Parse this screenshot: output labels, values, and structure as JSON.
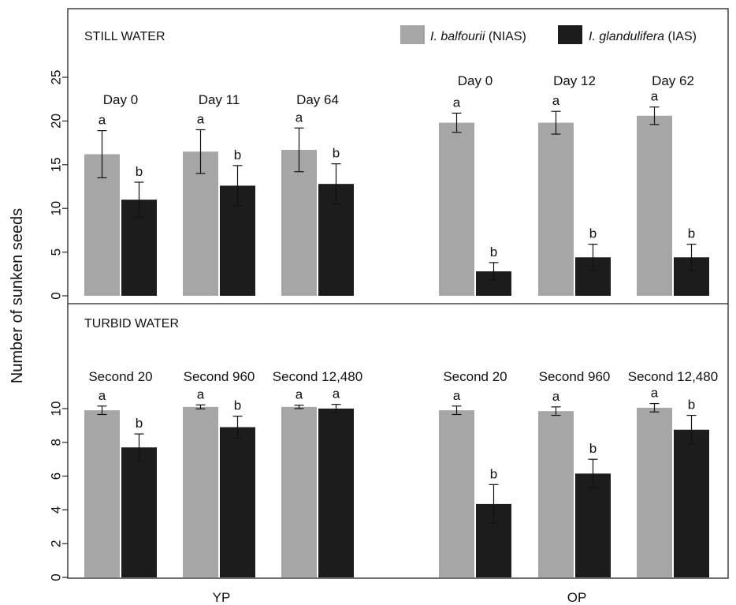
{
  "colors": {
    "nias": "#a6a6a6",
    "ias": "#1c1c1c",
    "axis": "#222222"
  },
  "chart_data": {
    "type": "bar",
    "ylabel": "Number of sunken seeds",
    "x_groups": [
      "YP",
      "OP"
    ],
    "legend": {
      "position": "top-right",
      "entries": [
        {
          "species": "I. balfourii",
          "suffix": " (NIAS)",
          "color_key": "nias"
        },
        {
          "species": "I. glandulifera",
          "suffix": " (IAS)",
          "color_key": "ias"
        }
      ]
    },
    "panels": [
      {
        "panel_label": "STILL WATER",
        "ylim": [
          0,
          25
        ],
        "yticks": [
          0,
          5,
          10,
          15,
          20,
          25
        ],
        "categories": [
          {
            "group": "YP",
            "label": "Day 0",
            "nias": 16.2,
            "nias_err": 2.7,
            "nias_sig": "a",
            "ias": 11.0,
            "ias_err": 2.0,
            "ias_sig": "b"
          },
          {
            "group": "YP",
            "label": "Day 11",
            "nias": 16.5,
            "nias_err": 2.5,
            "nias_sig": "a",
            "ias": 12.6,
            "ias_err": 2.3,
            "ias_sig": "b"
          },
          {
            "group": "YP",
            "label": "Day 64",
            "nias": 16.7,
            "nias_err": 2.5,
            "nias_sig": "a",
            "ias": 12.8,
            "ias_err": 2.3,
            "ias_sig": "b"
          },
          {
            "group": "OP",
            "label": "Day 0",
            "nias": 19.8,
            "nias_err": 1.1,
            "nias_sig": "a",
            "ias": 2.8,
            "ias_err": 1.0,
            "ias_sig": "b"
          },
          {
            "group": "OP",
            "label": "Day 12",
            "nias": 19.8,
            "nias_err": 1.3,
            "nias_sig": "a",
            "ias": 4.4,
            "ias_err": 1.5,
            "ias_sig": "b"
          },
          {
            "group": "OP",
            "label": "Day 62",
            "nias": 20.6,
            "nias_err": 1.0,
            "nias_sig": "a",
            "ias": 4.4,
            "ias_err": 1.5,
            "ias_sig": "b"
          }
        ]
      },
      {
        "panel_label": "TURBID WATER",
        "ylim": [
          0,
          10
        ],
        "yticks": [
          0,
          2,
          4,
          6,
          8,
          10
        ],
        "categories": [
          {
            "group": "YP",
            "label": "Second 20",
            "nias": 9.9,
            "nias_err": 0.25,
            "nias_sig": "a",
            "ias": 7.7,
            "ias_err": 0.8,
            "ias_sig": "b"
          },
          {
            "group": "YP",
            "label": "Second 960",
            "nias": 10.1,
            "nias_err": 0.12,
            "nias_sig": "a",
            "ias": 8.9,
            "ias_err": 0.65,
            "ias_sig": "b"
          },
          {
            "group": "YP",
            "label": "Second 12,480",
            "nias": 10.1,
            "nias_err": 0.1,
            "nias_sig": "a",
            "ias": 10.0,
            "ias_err": 0.25,
            "ias_sig": "a"
          },
          {
            "group": "OP",
            "label": "Second 20",
            "nias": 9.9,
            "nias_err": 0.25,
            "nias_sig": "a",
            "ias": 4.35,
            "ias_err": 1.15,
            "ias_sig": "b"
          },
          {
            "group": "OP",
            "label": "Second 960",
            "nias": 9.85,
            "nias_err": 0.25,
            "nias_sig": "a",
            "ias": 6.15,
            "ias_err": 0.85,
            "ias_sig": "b"
          },
          {
            "group": "OP",
            "label": "Second 12,480",
            "nias": 10.05,
            "nias_err": 0.25,
            "nias_sig": "a",
            "ias": 8.75,
            "ias_err": 0.85,
            "ias_sig": "b"
          }
        ]
      }
    ]
  }
}
